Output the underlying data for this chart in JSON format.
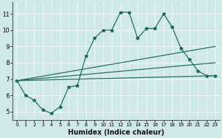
{
  "xlabel": "Humidex (Indice chaleur)",
  "xlim": [
    -0.5,
    23.5
  ],
  "ylim": [
    4.5,
    11.7
  ],
  "xticks": [
    0,
    1,
    2,
    3,
    4,
    5,
    6,
    7,
    8,
    9,
    10,
    11,
    12,
    13,
    14,
    15,
    16,
    17,
    18,
    19,
    20,
    21,
    22,
    23
  ],
  "yticks": [
    5,
    6,
    7,
    8,
    9,
    10,
    11
  ],
  "bg_color": "#cfe8e8",
  "grid_color": "#ffffff",
  "line_color": "#1a6b5a",
  "main_line": {
    "x": [
      0,
      1,
      2,
      3,
      4,
      5,
      6,
      7,
      8,
      9,
      10,
      11,
      12,
      13,
      14,
      15,
      16,
      17,
      18,
      19,
      20,
      21,
      22,
      23
    ],
    "y": [
      6.9,
      6.0,
      5.7,
      5.1,
      4.9,
      5.3,
      6.5,
      6.6,
      8.4,
      9.5,
      10.0,
      10.0,
      11.1,
      11.1,
      9.5,
      10.1,
      10.1,
      11.0,
      10.2,
      8.9,
      8.2,
      7.5,
      7.2,
      7.2
    ]
  },
  "fan_lines": [
    {
      "x": [
        0,
        23
      ],
      "y": [
        6.9,
        7.2
      ]
    },
    {
      "x": [
        0,
        23
      ],
      "y": [
        6.9,
        8.0
      ]
    },
    {
      "x": [
        0,
        23
      ],
      "y": [
        6.9,
        9.0
      ]
    }
  ]
}
